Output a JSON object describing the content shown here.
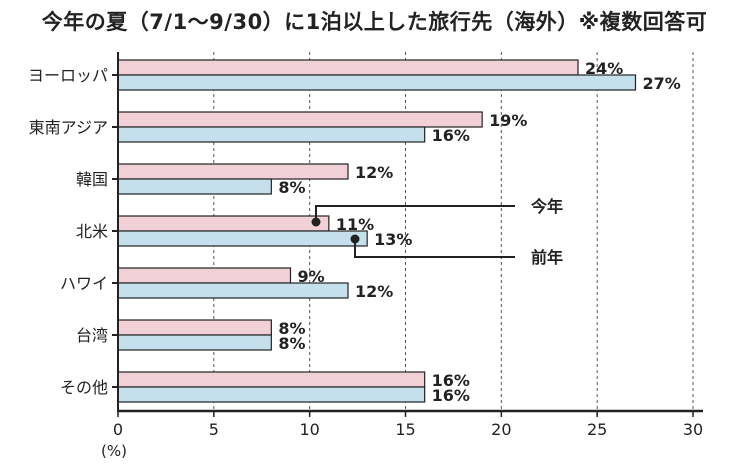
{
  "chart_data": {
    "type": "bar",
    "title": "今年の夏（7/1〜9/30）に1泊以上した旅行先（海外）※複数回答可",
    "categories": [
      "ヨーロッパ",
      "東南アジア",
      "韓国",
      "北米",
      "ハワイ",
      "台湾",
      "その他"
    ],
    "series": [
      {
        "name": "今年",
        "color": "#f2d0d8",
        "values": [
          24,
          19,
          12,
          11,
          9,
          8,
          16
        ],
        "labels": [
          "24%",
          "19%",
          "12%",
          "11%",
          "9%",
          "8%",
          "16%"
        ]
      },
      {
        "name": "前年",
        "color": "#c5e0ec",
        "values": [
          27,
          16,
          8,
          13,
          12,
          8,
          16
        ],
        "labels": [
          "27%",
          "16%",
          "8%",
          "13%",
          "12%",
          "8%",
          "16%"
        ]
      }
    ],
    "xlim": [
      0,
      30
    ],
    "xticks": [
      0,
      5,
      10,
      15,
      20,
      25,
      30
    ],
    "xtick_labels": [
      "0",
      "5",
      "10",
      "15",
      "20",
      "25",
      "30"
    ],
    "xlabel": "(%)",
    "grid": "vertical dashed",
    "annotations": {
      "this_year": "今年",
      "last_year": "前年"
    }
  }
}
